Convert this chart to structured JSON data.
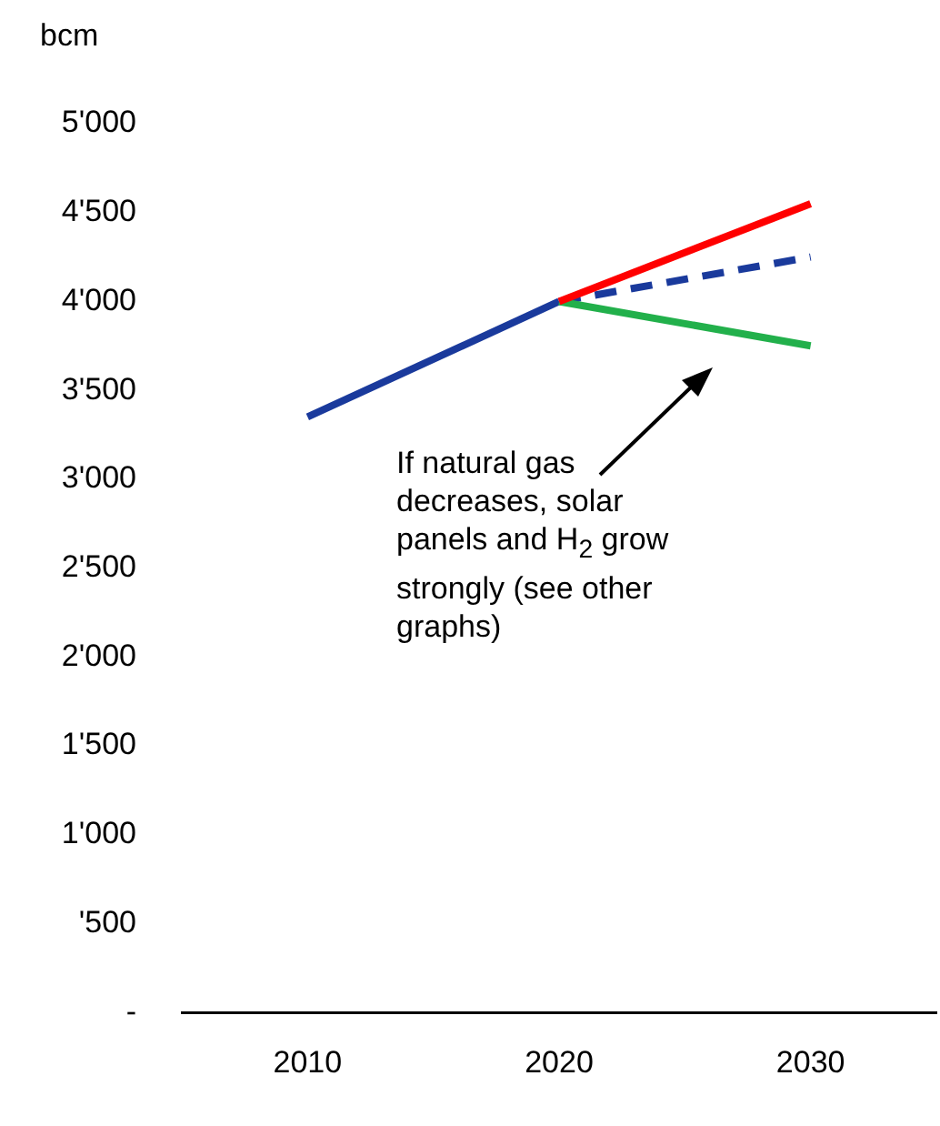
{
  "chart_data": {
    "type": "line",
    "ylabel": "bcm",
    "categories": [
      "2010",
      "2020",
      "2030"
    ],
    "series": [
      {
        "color": "#ff0000",
        "values": [
          null,
          4000,
          4550
        ]
      },
      {
        "color": "#22b04b",
        "values": [
          null,
          4000,
          3750
        ]
      },
      {
        "color": "#1a3a9c",
        "values": [
          null,
          4000,
          4250
        ],
        "line_style": "dashed"
      },
      {
        "color": "#1a3a9c",
        "values": [
          3350,
          4000,
          null
        ],
        "line_style": "solid"
      }
    ],
    "ylim": [
      0,
      5000
    ],
    "yticks": [
      {
        "value": 0,
        "label": "-"
      },
      {
        "value": 500,
        "label": "'500"
      },
      {
        "value": 1000,
        "label": "1'000"
      },
      {
        "value": 1500,
        "label": "1'500"
      },
      {
        "value": 2000,
        "label": "2'000"
      },
      {
        "value": 2500,
        "label": "2'500"
      },
      {
        "value": 3000,
        "label": "3'000"
      },
      {
        "value": 3500,
        "label": "3'500"
      },
      {
        "value": 4000,
        "label": "4'000"
      },
      {
        "value": 4500,
        "label": "4'500"
      },
      {
        "value": 5000,
        "label": "5'000"
      }
    ],
    "annotations": [
      "If natural gas decreases, solar panels and H$_{2}$ grow strongly (see other graphs)"
    ],
    "grid": false,
    "legend": false,
    "marker": "none"
  }
}
